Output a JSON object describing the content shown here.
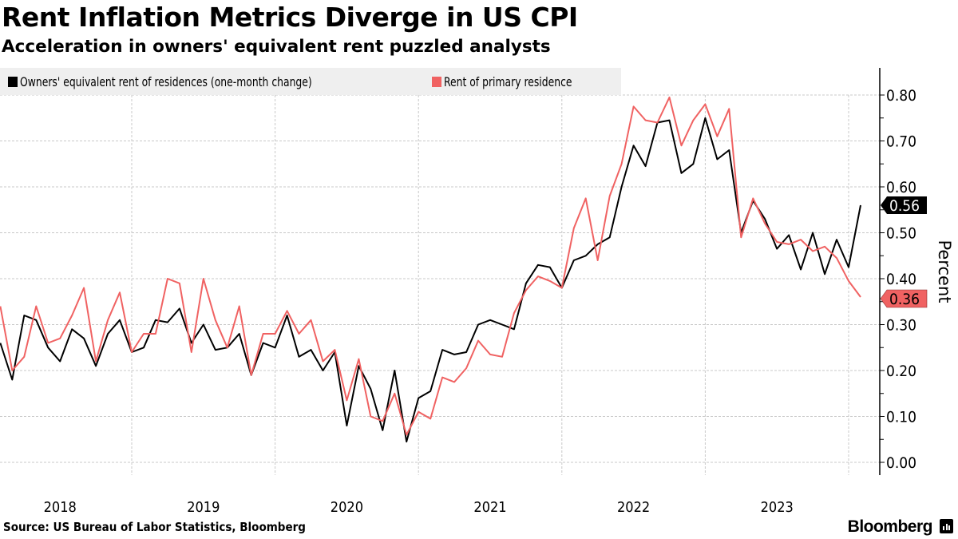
{
  "header": {
    "title": "Rent Inflation Metrics Diverge in US CPI",
    "subtitle": "Acceleration in owners' equivalent rent puzzled analysts"
  },
  "footer": {
    "source": "Source: US Bureau of Labor Statistics, Bloomberg",
    "brand": "Bloomberg"
  },
  "chart_data": {
    "type": "line",
    "title": "Rent Inflation Metrics Diverge in US CPI",
    "subtitle": "Acceleration in owners' equivalent rent puzzled analysts",
    "xlabel": "",
    "ylabel": "Percent",
    "ylim": [
      0.0,
      0.85
    ],
    "yticks": [
      "0.00",
      "0.10",
      "0.20",
      "0.30",
      "0.40",
      "0.50",
      "0.60",
      "0.70",
      "0.80"
    ],
    "ytick_values": [
      0.0,
      0.1,
      0.2,
      0.3,
      0.4,
      0.5,
      0.6,
      0.7,
      0.8
    ],
    "xticks": [
      "2018",
      "2019",
      "2020",
      "2021",
      "2022",
      "2023"
    ],
    "x_start": "2018-02",
    "x_end": "2024-02",
    "frequency": "monthly",
    "grid": true,
    "legend_position": "top-left",
    "series": [
      {
        "name": "Owners' equivalent rent of residences (one-month change)",
        "color": "#000000",
        "last_value_label": "0.56",
        "values": [
          0.26,
          0.18,
          0.32,
          0.31,
          0.25,
          0.22,
          0.29,
          0.27,
          0.21,
          0.28,
          0.31,
          0.24,
          0.25,
          0.31,
          0.305,
          0.335,
          0.26,
          0.3,
          0.245,
          0.25,
          0.28,
          0.19,
          0.26,
          0.25,
          0.32,
          0.23,
          0.245,
          0.2,
          0.24,
          0.08,
          0.21,
          0.16,
          0.07,
          0.2,
          0.045,
          0.14,
          0.155,
          0.245,
          0.235,
          0.24,
          0.3,
          0.31,
          0.3,
          0.29,
          0.39,
          0.43,
          0.425,
          0.38,
          0.44,
          0.45,
          0.475,
          0.49,
          0.6,
          0.69,
          0.645,
          0.74,
          0.745,
          0.63,
          0.65,
          0.75,
          0.66,
          0.68,
          0.5,
          0.57,
          0.53,
          0.465,
          0.495,
          0.42,
          0.5,
          0.41,
          0.485,
          0.425,
          0.56
        ]
      },
      {
        "name": "Rent of primary residence",
        "color": "#f06262",
        "last_value_label": "0.36",
        "values": [
          0.34,
          0.2,
          0.23,
          0.34,
          0.26,
          0.27,
          0.32,
          0.38,
          0.22,
          0.31,
          0.37,
          0.24,
          0.28,
          0.28,
          0.4,
          0.39,
          0.24,
          0.4,
          0.31,
          0.25,
          0.34,
          0.19,
          0.28,
          0.28,
          0.33,
          0.28,
          0.31,
          0.22,
          0.245,
          0.135,
          0.225,
          0.1,
          0.09,
          0.15,
          0.06,
          0.11,
          0.095,
          0.185,
          0.175,
          0.205,
          0.265,
          0.235,
          0.23,
          0.325,
          0.375,
          0.405,
          0.395,
          0.38,
          0.51,
          0.575,
          0.44,
          0.58,
          0.65,
          0.775,
          0.745,
          0.74,
          0.795,
          0.69,
          0.745,
          0.78,
          0.71,
          0.77,
          0.49,
          0.575,
          0.52,
          0.48,
          0.475,
          0.485,
          0.46,
          0.47,
          0.445,
          0.395,
          0.36
        ]
      }
    ]
  }
}
